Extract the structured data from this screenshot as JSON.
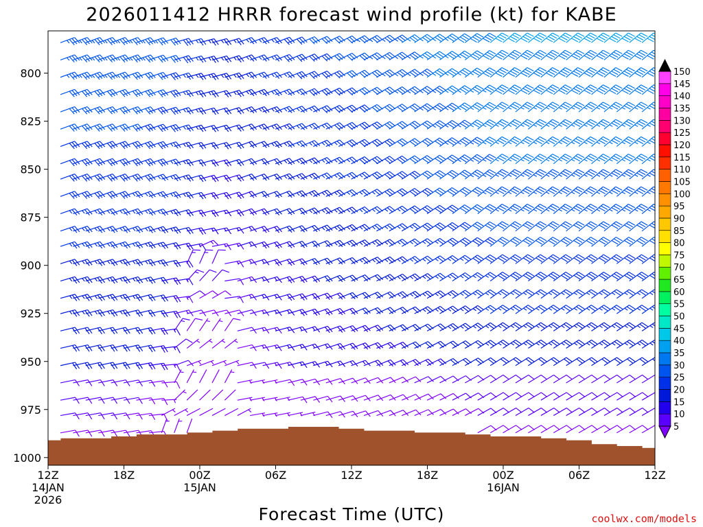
{
  "chart_data": {
    "type": "wind-barb-profile",
    "title": "2026011412 HRRR forecast wind profile (kt) for KABE",
    "xlabel": "Forecast Time (UTC)",
    "ylabel": "",
    "y_unit": "hPa",
    "ylim": [
      1004,
      778
    ],
    "yticks": [
      800,
      825,
      850,
      875,
      900,
      925,
      950,
      975,
      1000
    ],
    "xlim_hours": [
      0,
      48
    ],
    "xticks": [
      {
        "hour": 0,
        "labels": [
          "12Z",
          "14JAN",
          "2026"
        ]
      },
      {
        "hour": 6,
        "labels": [
          "18Z"
        ]
      },
      {
        "hour": 12,
        "labels": [
          "00Z",
          "15JAN"
        ]
      },
      {
        "hour": 18,
        "labels": [
          "06Z"
        ]
      },
      {
        "hour": 24,
        "labels": [
          "12Z"
        ]
      },
      {
        "hour": 30,
        "labels": [
          "18Z"
        ]
      },
      {
        "hour": 36,
        "labels": [
          "00Z",
          "16JAN"
        ]
      },
      {
        "hour": 42,
        "labels": [
          "06Z"
        ]
      },
      {
        "hour": 48,
        "labels": [
          "12Z"
        ]
      }
    ],
    "pressure_levels": [
      787,
      796,
      805,
      814,
      823,
      832,
      841,
      850,
      858,
      867,
      876,
      885,
      893,
      902,
      911,
      920,
      928,
      937,
      946,
      955,
      964,
      973,
      981,
      990,
      999
    ],
    "surface_pressure": {
      "hours": [
        0,
        2,
        4,
        6,
        8,
        10,
        12,
        14,
        16,
        18,
        20,
        22,
        24,
        26,
        28,
        30,
        32,
        34,
        36,
        38,
        40,
        42,
        44,
        46,
        48
      ],
      "pressure": [
        991,
        990,
        990,
        989,
        988,
        988,
        987,
        986,
        985,
        985,
        984,
        984,
        985,
        986,
        986,
        987,
        987,
        988,
        989,
        989,
        990,
        991,
        993,
        994,
        995
      ]
    },
    "wind_model": {
      "description": "wind speed (kt) and direction (deg from) per forecast hour column (every hour) and pressure level",
      "columns": 49
    },
    "colorbar": {
      "levels": [
        5,
        10,
        15,
        20,
        25,
        30,
        35,
        40,
        45,
        50,
        55,
        60,
        65,
        70,
        75,
        80,
        85,
        90,
        95,
        100,
        105,
        110,
        115,
        120,
        125,
        130,
        135,
        140,
        145,
        150
      ],
      "colors": [
        "#8000ff",
        "#5a00ff",
        "#2200ee",
        "#0018d8",
        "#0030e8",
        "#0055ee",
        "#0078f0",
        "#00a0f0",
        "#00c8e8",
        "#00e8c8",
        "#00ffa0",
        "#00f060",
        "#20e820",
        "#60f000",
        "#c0f800",
        "#ffff00",
        "#ffe000",
        "#ffc800",
        "#ffa800",
        "#ff9000",
        "#ff7800",
        "#ff6000",
        "#ff3000",
        "#ff1000",
        "#ff0030",
        "#ff0070",
        "#ff00a0",
        "#ff00c8",
        "#ff00e8",
        "#ff40ff"
      ]
    }
  },
  "credit": "coolwx.com/models",
  "colors": {
    "ground": "#a0522d",
    "frame": "#000000",
    "background": "#ffffff"
  }
}
